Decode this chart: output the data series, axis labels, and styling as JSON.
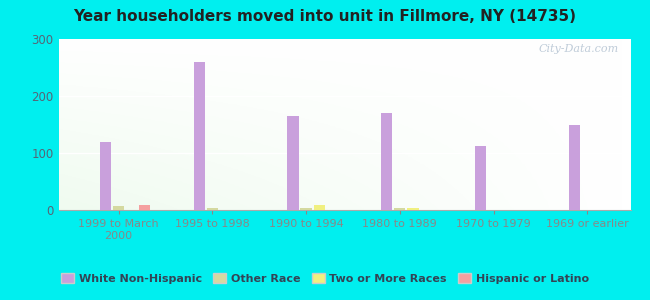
{
  "title": "Year householders moved into unit in Fillmore, NY (14735)",
  "categories": [
    "1999 to March\n2000",
    "1995 to 1998",
    "1990 to 1994",
    "1980 to 1989",
    "1970 to 1979",
    "1969 or earlier"
  ],
  "series": {
    "White Non-Hispanic": [
      120,
      260,
      165,
      170,
      113,
      150
    ],
    "Other Race": [
      7,
      4,
      3,
      3,
      0,
      0
    ],
    "Two or More Races": [
      0,
      0,
      8,
      3,
      0,
      0
    ],
    "Hispanic or Latino": [
      8,
      0,
      0,
      0,
      0,
      0
    ]
  },
  "colors": {
    "White Non-Hispanic": "#c9a0dc",
    "Other Race": "#d4d9a0",
    "Two or More Races": "#f0f080",
    "Hispanic or Latino": "#f5a0a0"
  },
  "ylim": [
    0,
    300
  ],
  "yticks": [
    0,
    100,
    200,
    300
  ],
  "outer_bg": "#00efef",
  "watermark": "City-Data.com",
  "legend_entries": [
    "White Non-Hispanic",
    "Other Race",
    "Two or More Races",
    "Hispanic or Latino"
  ]
}
